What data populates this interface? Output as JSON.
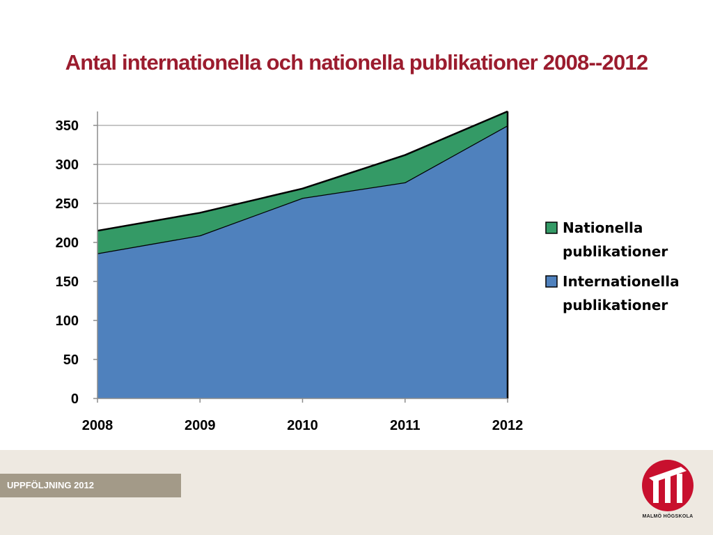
{
  "title": "Antal internationella och nationella publikationer 2008--2012",
  "footer": {
    "tag": "UPPFÖLJNING  2012",
    "logo_text": "MALMÖ HÖGSKOLA"
  },
  "colors": {
    "title": "#9b1c2e",
    "internationella": "#4f81bd",
    "nationella": "#349a66",
    "logo": "#c8102e"
  },
  "chart_data": {
    "type": "area",
    "stacked": true,
    "categories": [
      "2008",
      "2009",
      "2010",
      "2011",
      "2012"
    ],
    "series": [
      {
        "name": "Internationella publikationer",
        "values": [
          186,
          209,
          257,
          277,
          350
        ],
        "color": "#4f81bd"
      },
      {
        "name": "Nationella publikationer",
        "values": [
          29,
          29,
          12,
          35,
          18
        ],
        "color": "#349a66"
      }
    ],
    "ylim": [
      0,
      350
    ],
    "yticks": [
      0,
      50,
      100,
      150,
      200,
      250,
      300,
      350
    ],
    "grid": true,
    "legend": "right",
    "legend_entries": [
      {
        "lines": [
          "Nationella",
          "publikationer"
        ],
        "color": "#349a66"
      },
      {
        "lines": [
          "Internationella",
          "publikationer"
        ],
        "color": "#4f81bd"
      }
    ]
  }
}
